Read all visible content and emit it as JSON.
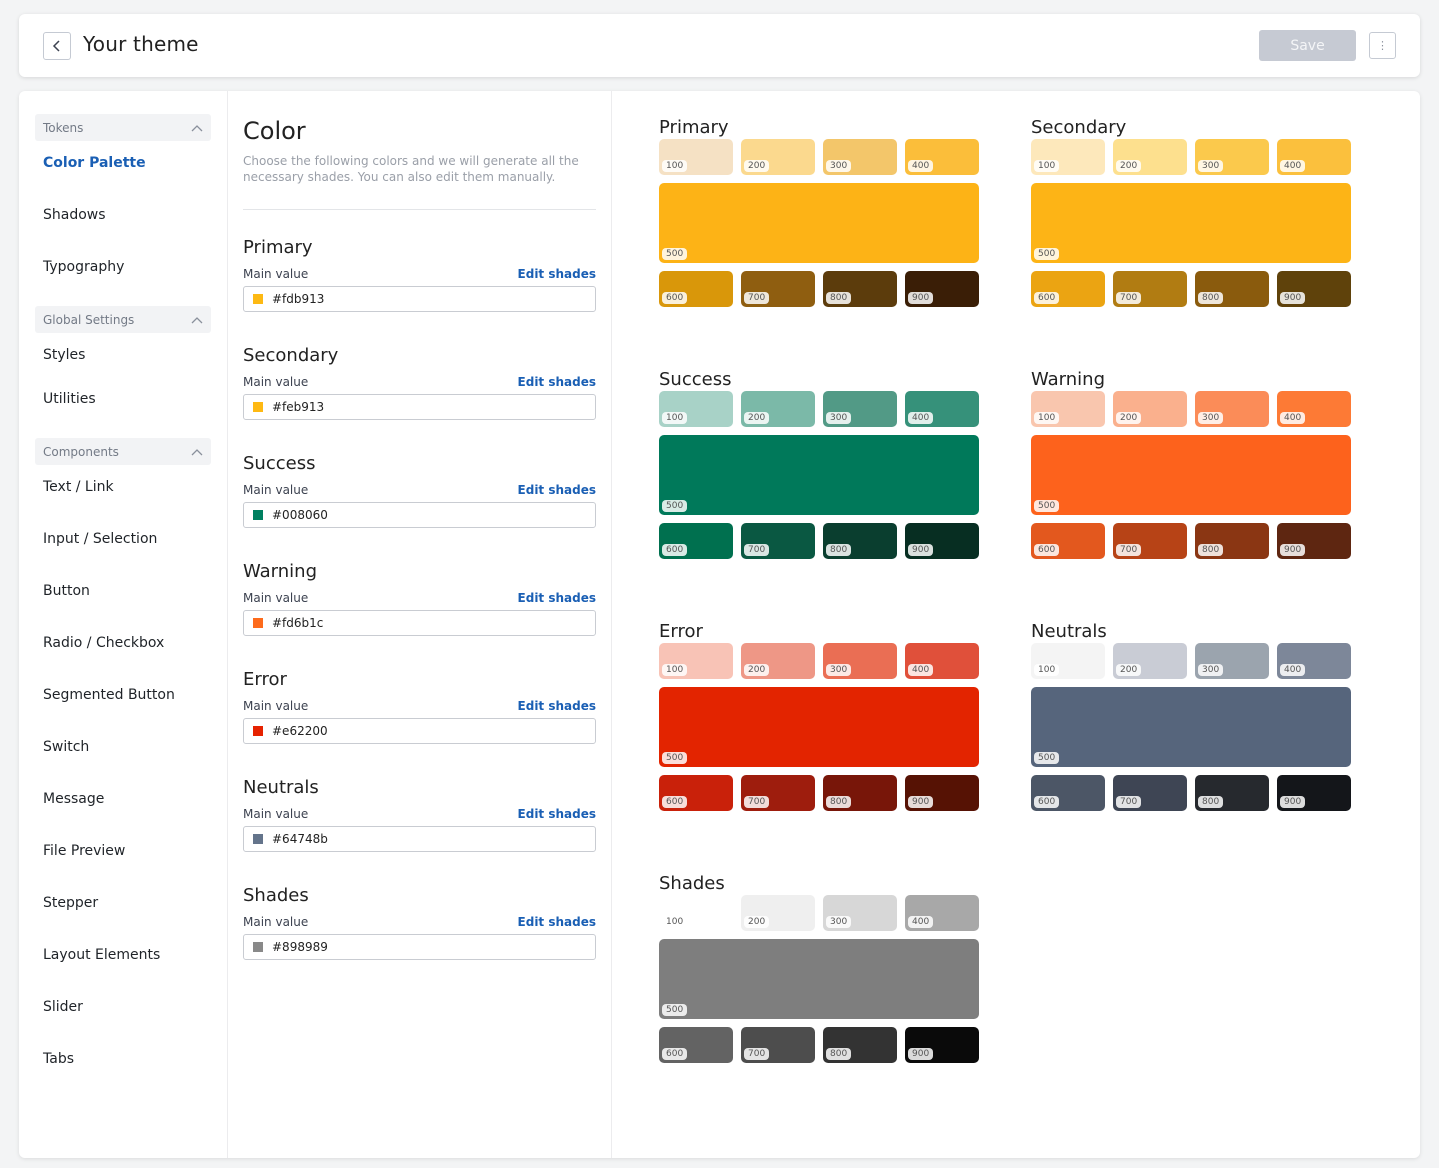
{
  "header": {
    "title": "Your theme",
    "save_label": "Save"
  },
  "sidebar": {
    "groups": [
      {
        "label": "Tokens",
        "items": [
          "Color Palette",
          "Shadows",
          "Typography"
        ]
      },
      {
        "label": "Global Settings",
        "items": [
          "Styles",
          "Utilities"
        ]
      },
      {
        "label": "Components",
        "items": [
          "Text / Link",
          "Input / Selection",
          "Button",
          "Radio / Checkbox",
          "Segmented Button",
          "Switch",
          "Message",
          "File Preview",
          "Stepper",
          "Layout Elements",
          "Slider",
          "Tabs"
        ]
      }
    ],
    "active": "Color Palette"
  },
  "form": {
    "title": "Color",
    "description": "Choose the following colors and we will generate all the necessary shades. You can also edit them manually.",
    "field_label": "Main value",
    "edit_label": "Edit shades",
    "fields": [
      {
        "name": "Primary",
        "value": "#fdb913",
        "swatch": "#fdb913"
      },
      {
        "name": "Secondary",
        "value": "#feb913",
        "swatch": "#feb913"
      },
      {
        "name": "Success",
        "value": "#008060",
        "swatch": "#008060"
      },
      {
        "name": "Warning",
        "value": "#fd6b1c",
        "swatch": "#fd6b1c"
      },
      {
        "name": "Error",
        "value": "#e62200",
        "swatch": "#e62200"
      },
      {
        "name": "Neutrals",
        "value": "#64748b",
        "swatch": "#64748b"
      },
      {
        "name": "Shades",
        "value": "#898989",
        "swatch": "#898989"
      }
    ]
  },
  "palettes": [
    {
      "name": "Primary",
      "shades": {
        "100": "#f5e1c4",
        "200": "#fbd98e",
        "300": "#f3c66a",
        "400": "#fbbe3a",
        "500": "#fdb316",
        "600": "#d9970a",
        "700": "#8f5e10",
        "800": "#5c3c0c",
        "900": "#3a1e06"
      }
    },
    {
      "name": "Secondary",
      "shades": {
        "100": "#fde8bb",
        "200": "#fde08e",
        "300": "#fbc94c",
        "400": "#fbc03d",
        "500": "#fdb416",
        "600": "#eba412",
        "700": "#b17c12",
        "800": "#8a5b0d",
        "900": "#5f420b"
      }
    },
    {
      "name": "Success",
      "shades": {
        "100": "#a8d2c7",
        "200": "#7bb9a8",
        "300": "#529a86",
        "400": "#36917a",
        "500": "#00795a",
        "600": "#00704f",
        "700": "#0a5842",
        "800": "#0a3e2f",
        "900": "#072e22"
      }
    },
    {
      "name": "Warning",
      "shades": {
        "100": "#f9c6ae",
        "200": "#fab08d",
        "300": "#fb8c58",
        "400": "#fd7a35",
        "500": "#fd621c",
        "600": "#e3581e",
        "700": "#b74316",
        "800": "#8a3613",
        "900": "#5e2611"
      }
    },
    {
      "name": "Error",
      "shades": {
        "100": "#f8c3b6",
        "200": "#ee9786",
        "300": "#ea6e54",
        "400": "#e0503a",
        "500": "#e32400",
        "600": "#c9210a",
        "700": "#9e1d0d",
        "800": "#781609",
        "900": "#561204"
      }
    },
    {
      "name": "Neutrals",
      "shades": {
        "100": "#f4f4f4",
        "200": "#c9ccd5",
        "300": "#9ba4ae",
        "400": "#7d8799",
        "500": "#56657c",
        "600": "#4c5666",
        "700": "#3e4554",
        "800": "#26292e",
        "900": "#14161a"
      }
    },
    {
      "name": "Shades",
      "shades": {
        "100": "#ffffff",
        "200": "#efefef",
        "300": "#d7d7d7",
        "400": "#a8a8a8",
        "500": "#7e7e7e",
        "600": "#636363",
        "700": "#4d4d4d",
        "800": "#333333",
        "900": "#0a0a0a"
      }
    }
  ]
}
